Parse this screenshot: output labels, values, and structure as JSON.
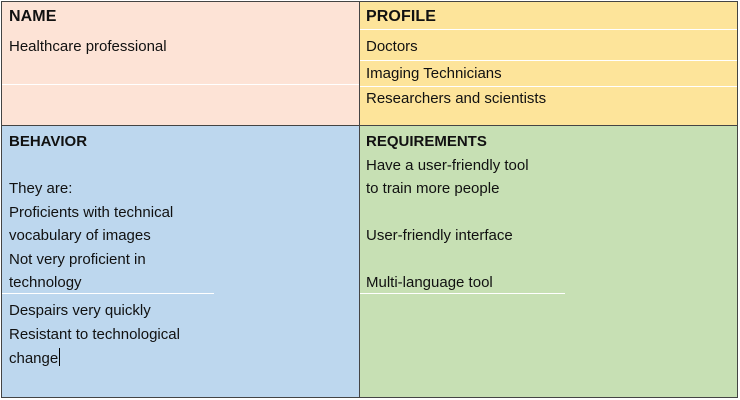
{
  "name_section": {
    "heading": "NAME",
    "value": "Healthcare professional"
  },
  "profile_section": {
    "heading": "PROFILE",
    "items": [
      "Doctors",
      "Imaging Technicians",
      "Researchers and scientists"
    ]
  },
  "behavior_section": {
    "heading": "BEHAVIOR",
    "lines": [
      "They are:",
      "Proficients with technical",
      "vocabulary of images",
      "Not very proficient in",
      "technology",
      "Despairs very quickly",
      "Resistant to technological",
      "change"
    ]
  },
  "requirements_section": {
    "heading": "REQUIREMENTS",
    "lines": [
      "Have a user-friendly tool",
      "to train more people",
      "User-friendly interface",
      "Multi-language tool"
    ]
  },
  "colors": {
    "name_bg": "#fde3d6",
    "profile_bg": "#fde49a",
    "behavior_bg": "#bdd7ee",
    "requirements_bg": "#c7e0b4",
    "border": "#444444"
  }
}
